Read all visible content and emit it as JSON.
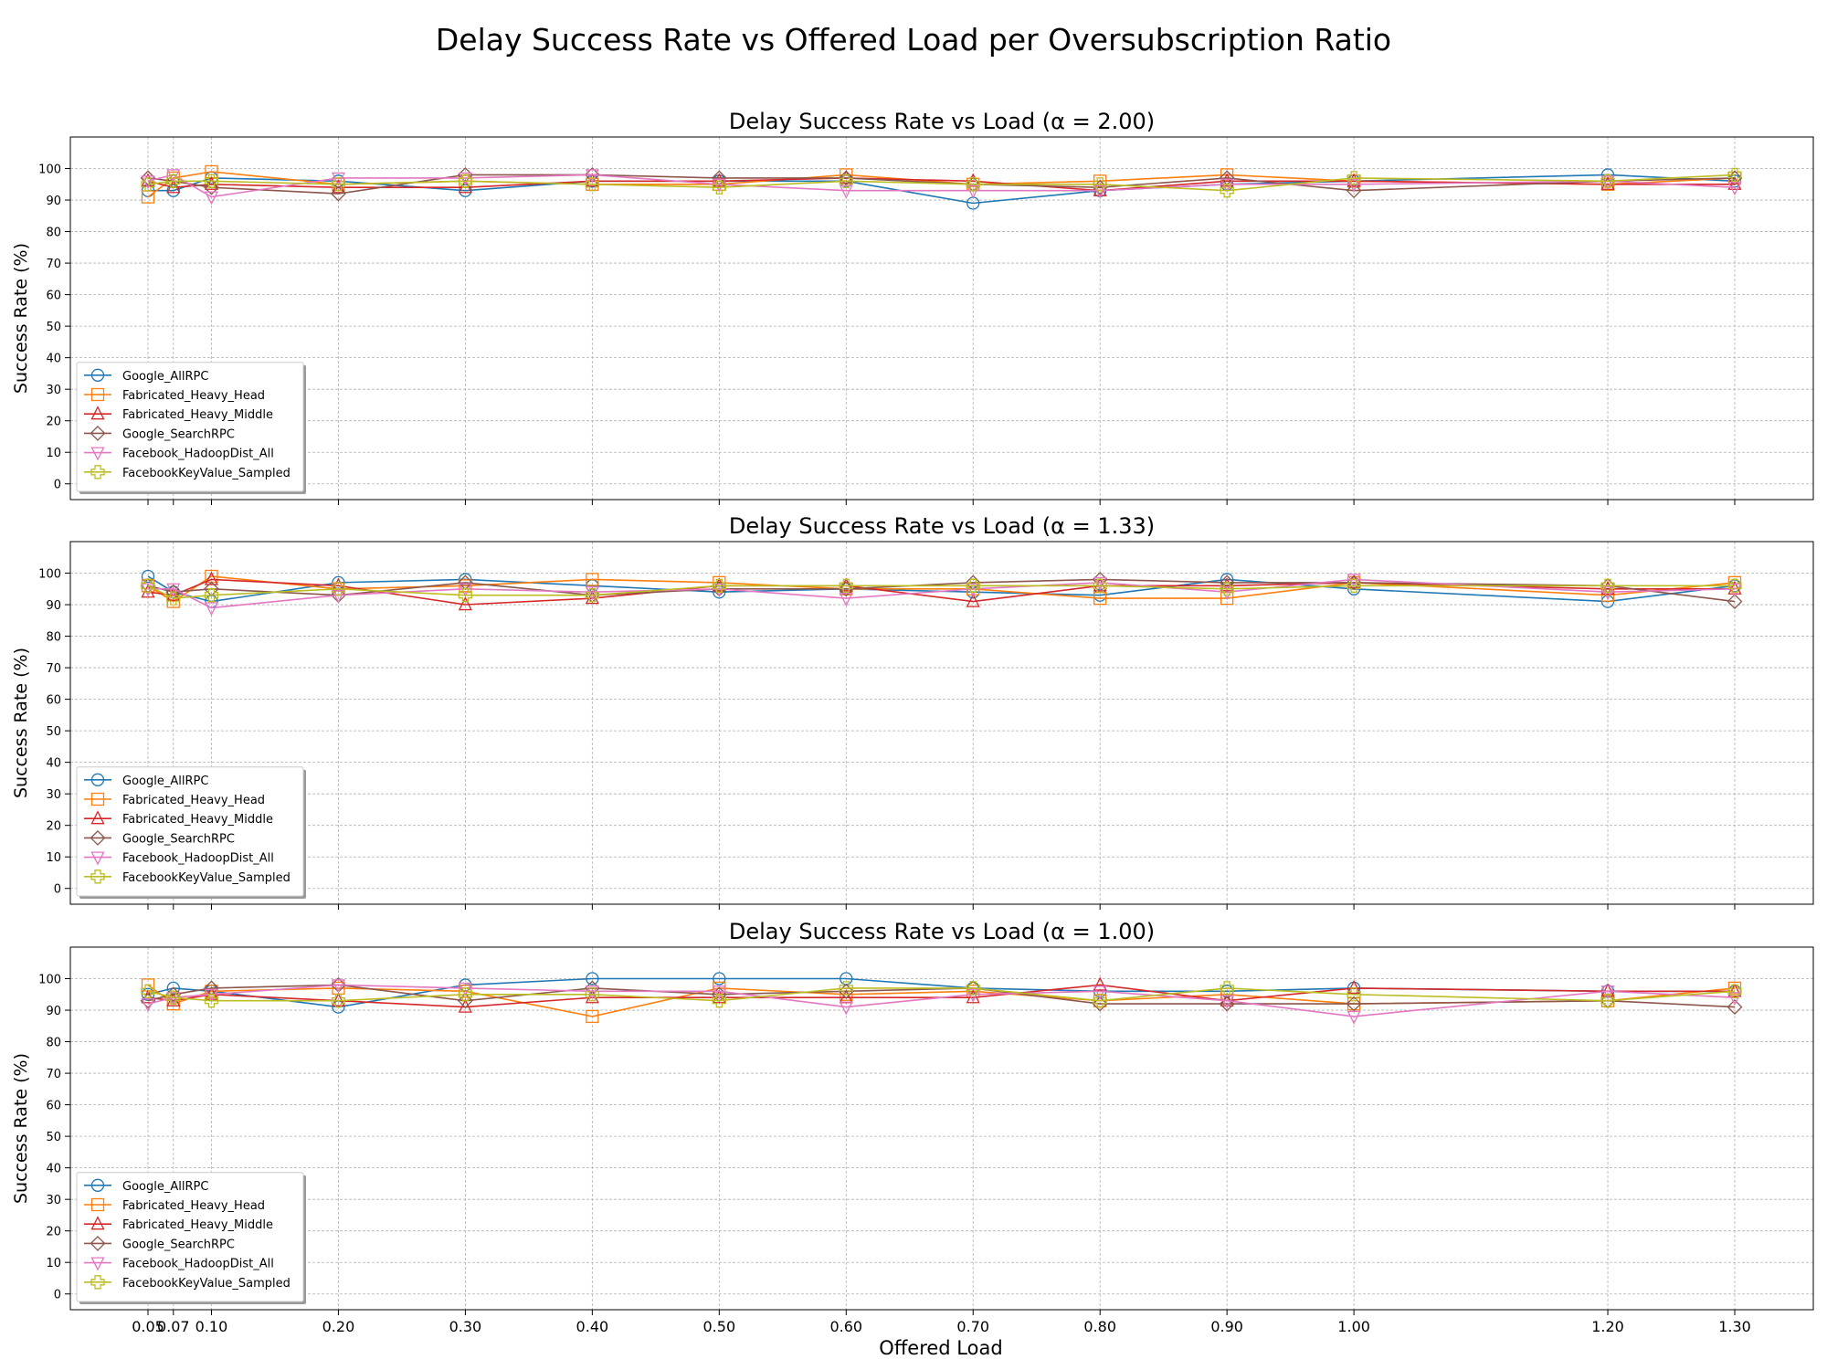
{
  "figure": {
    "title": "Delay Success Rate vs Offered Load per Oversubscription Ratio",
    "xlabel": "Offered Load"
  },
  "chart_data": [
    {
      "type": "line",
      "title": "Delay Success Rate vs Load (α = 2.00)",
      "xlabel": "",
      "ylabel": "Success Rate (%)",
      "x": [
        0.05,
        0.07,
        0.1,
        0.2,
        0.3,
        0.4,
        0.5,
        0.6,
        0.7,
        0.8,
        0.9,
        1.0,
        1.2,
        1.3
      ],
      "ylim": [
        -5,
        110
      ],
      "yticks": [
        0,
        10,
        20,
        30,
        40,
        50,
        60,
        70,
        80,
        90,
        100
      ],
      "grid": true,
      "legend_position": "lower-left",
      "series": [
        {
          "name": "Google_AllRPC",
          "color": "#1f77b4",
          "marker": "circle",
          "values": [
            93,
            93,
            97,
            96,
            93,
            96,
            96,
            96,
            89,
            93,
            95,
            96,
            98,
            96
          ]
        },
        {
          "name": "Fabricated_Heavy_Head",
          "color": "#ff7f0e",
          "marker": "square",
          "values": [
            91,
            97,
            99,
            95,
            96,
            95,
            95,
            98,
            95,
            96,
            98,
            96,
            95,
            97
          ]
        },
        {
          "name": "Fabricated_Heavy_Middle",
          "color": "#d62728",
          "marker": "triangle-up",
          "values": [
            96,
            94,
            95,
            94,
            94,
            96,
            96,
            97,
            96,
            93,
            96,
            96,
            95,
            95
          ]
        },
        {
          "name": "Google_SearchRPC",
          "color": "#8c564b",
          "marker": "diamond",
          "values": [
            97,
            96,
            94,
            92,
            98,
            98,
            97,
            97,
            95,
            94,
            97,
            93,
            96,
            97
          ]
        },
        {
          "name": "Facebook_HadoopDist_All",
          "color": "#e377c2",
          "marker": "triangle-down",
          "values": [
            96,
            98,
            91,
            97,
            97,
            98,
            95,
            93,
            93,
            93,
            95,
            95,
            96,
            94
          ]
        },
        {
          "name": "FacebookKeyValue_Sampled",
          "color": "#bcbd22",
          "marker": "plus",
          "values": [
            95,
            96,
            96,
            95,
            96,
            95,
            94,
            96,
            95,
            95,
            93,
            97,
            96,
            98
          ]
        }
      ]
    },
    {
      "type": "line",
      "title": "Delay Success Rate vs Load (α = 1.33)",
      "xlabel": "",
      "ylabel": "Success Rate (%)",
      "x": [
        0.05,
        0.07,
        0.1,
        0.2,
        0.3,
        0.4,
        0.5,
        0.6,
        0.7,
        0.8,
        0.9,
        1.0,
        1.2,
        1.3
      ],
      "ylim": [
        -5,
        110
      ],
      "yticks": [
        0,
        10,
        20,
        30,
        40,
        50,
        60,
        70,
        80,
        90,
        100
      ],
      "grid": true,
      "legend_position": "lower-left",
      "series": [
        {
          "name": "Google_AllRPC",
          "color": "#1f77b4",
          "marker": "circle",
          "values": [
            99,
            94,
            91,
            97,
            98,
            96,
            94,
            95,
            94,
            93,
            98,
            95,
            91,
            96
          ]
        },
        {
          "name": "Fabricated_Heavy_Head",
          "color": "#ff7f0e",
          "marker": "square",
          "values": [
            96,
            91,
            99,
            95,
            96,
            98,
            97,
            95,
            95,
            92,
            92,
            97,
            93,
            97
          ]
        },
        {
          "name": "Fabricated_Heavy_Middle",
          "color": "#d62728",
          "marker": "triangle-up",
          "values": [
            94,
            93,
            98,
            96,
            90,
            92,
            96,
            96,
            91,
            96,
            96,
            97,
            95,
            95
          ]
        },
        {
          "name": "Google_SearchRPC",
          "color": "#8c564b",
          "marker": "diamond",
          "values": [
            96,
            94,
            95,
            93,
            97,
            93,
            95,
            95,
            97,
            98,
            97,
            97,
            96,
            91
          ]
        },
        {
          "name": "Facebook_HadoopDist_All",
          "color": "#e377c2",
          "marker": "triangle-down",
          "values": [
            95,
            95,
            89,
            93,
            95,
            94,
            95,
            92,
            95,
            97,
            94,
            98,
            94,
            95
          ]
        },
        {
          "name": "FacebookKeyValue_Sampled",
          "color": "#bcbd22",
          "marker": "plus",
          "values": [
            96,
            92,
            93,
            95,
            93,
            93,
            96,
            96,
            96,
            96,
            95,
            96,
            96,
            96
          ]
        }
      ]
    },
    {
      "type": "line",
      "title": "Delay Success Rate vs Load (α = 1.00)",
      "xlabel": "Offered Load",
      "ylabel": "Success Rate (%)",
      "x": [
        0.05,
        0.07,
        0.1,
        0.2,
        0.3,
        0.4,
        0.5,
        0.6,
        0.7,
        0.8,
        0.9,
        1.0,
        1.2,
        1.3
      ],
      "xtick_labels": [
        "0.05",
        "0.07",
        "0.10",
        "0.20",
        "0.30",
        "0.40",
        "0.50",
        "0.60",
        "0.70",
        "0.80",
        "0.90",
        "1.00",
        "1.20",
        "1.30"
      ],
      "ylim": [
        -5,
        110
      ],
      "yticks": [
        0,
        10,
        20,
        30,
        40,
        50,
        60,
        70,
        80,
        90,
        100
      ],
      "grid": true,
      "legend_position": "lower-left",
      "series": [
        {
          "name": "Google_AllRPC",
          "color": "#1f77b4",
          "marker": "circle",
          "values": [
            95,
            97,
            96,
            91,
            98,
            100,
            100,
            100,
            97,
            96,
            96,
            97,
            96,
            96
          ]
        },
        {
          "name": "Fabricated_Heavy_Head",
          "color": "#ff7f0e",
          "marker": "square",
          "values": [
            98,
            92,
            96,
            97,
            96,
            88,
            97,
            95,
            96,
            93,
            95,
            92,
            93,
            97
          ]
        },
        {
          "name": "Fabricated_Heavy_Middle",
          "color": "#d62728",
          "marker": "triangle-up",
          "values": [
            94,
            93,
            95,
            93,
            91,
            94,
            94,
            94,
            94,
            98,
            93,
            97,
            96,
            96
          ]
        },
        {
          "name": "Google_SearchRPC",
          "color": "#8c564b",
          "marker": "diamond",
          "values": [
            93,
            95,
            97,
            98,
            93,
            97,
            95,
            96,
            97,
            92,
            92,
            92,
            93,
            91
          ]
        },
        {
          "name": "Facebook_HadoopDist_All",
          "color": "#e377c2",
          "marker": "triangle-down",
          "values": [
            92,
            94,
            95,
            98,
            97,
            96,
            96,
            91,
            95,
            96,
            93,
            88,
            96,
            94
          ]
        },
        {
          "name": "FacebookKeyValue_Sampled",
          "color": "#bcbd22",
          "marker": "plus",
          "values": [
            96,
            94,
            93,
            93,
            95,
            95,
            93,
            97,
            97,
            93,
            97,
            95,
            93,
            96
          ]
        }
      ]
    }
  ]
}
